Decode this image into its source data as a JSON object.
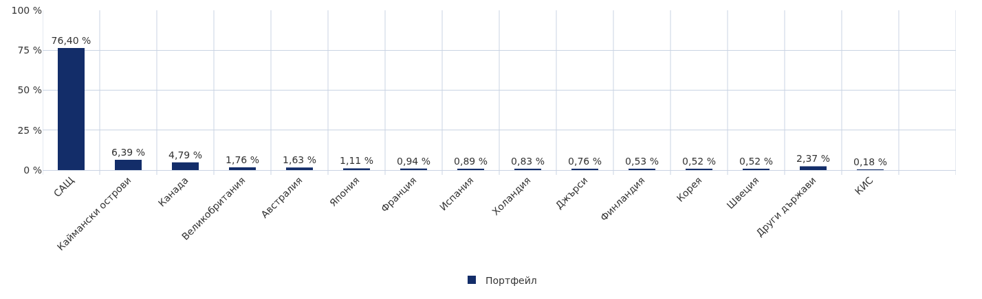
{
  "chart_data": {
    "type": "bar",
    "categories": [
      "САЩ",
      "Каймански острови",
      "Канада",
      "Великобритания",
      "Австралия",
      "Япония",
      "Франция",
      "Испания",
      "Холандия",
      "Джърси",
      "Финландия",
      "Корея",
      "Швеция",
      "Други държави",
      "КИС",
      null
    ],
    "series": [
      {
        "name": "Портфейл",
        "color": "#132d69",
        "values": [
          76.4,
          6.39,
          4.79,
          1.76,
          1.63,
          1.11,
          0.94,
          0.89,
          0.83,
          0.76,
          0.53,
          0.52,
          0.52,
          2.37,
          0.18,
          0
        ],
        "value_labels": [
          "76,40 %",
          "6,39 %",
          "4,79 %",
          "1,76 %",
          "1,63 %",
          "1,11 %",
          "0,94 %",
          "0,89 %",
          "0,83 %",
          "0,76 %",
          "0,53 %",
          "0,52 %",
          "0,52 %",
          "2,37 %",
          "0,18 %",
          null
        ]
      }
    ],
    "ylim": [
      0,
      100
    ],
    "yticks": [
      {
        "value": 0,
        "label": "0 %"
      },
      {
        "value": 25,
        "label": "25 %"
      },
      {
        "value": 50,
        "label": "50 %"
      },
      {
        "value": 75,
        "label": "75 %"
      },
      {
        "value": 100,
        "label": "100 %"
      }
    ],
    "grid": true,
    "legend": "bottom"
  }
}
